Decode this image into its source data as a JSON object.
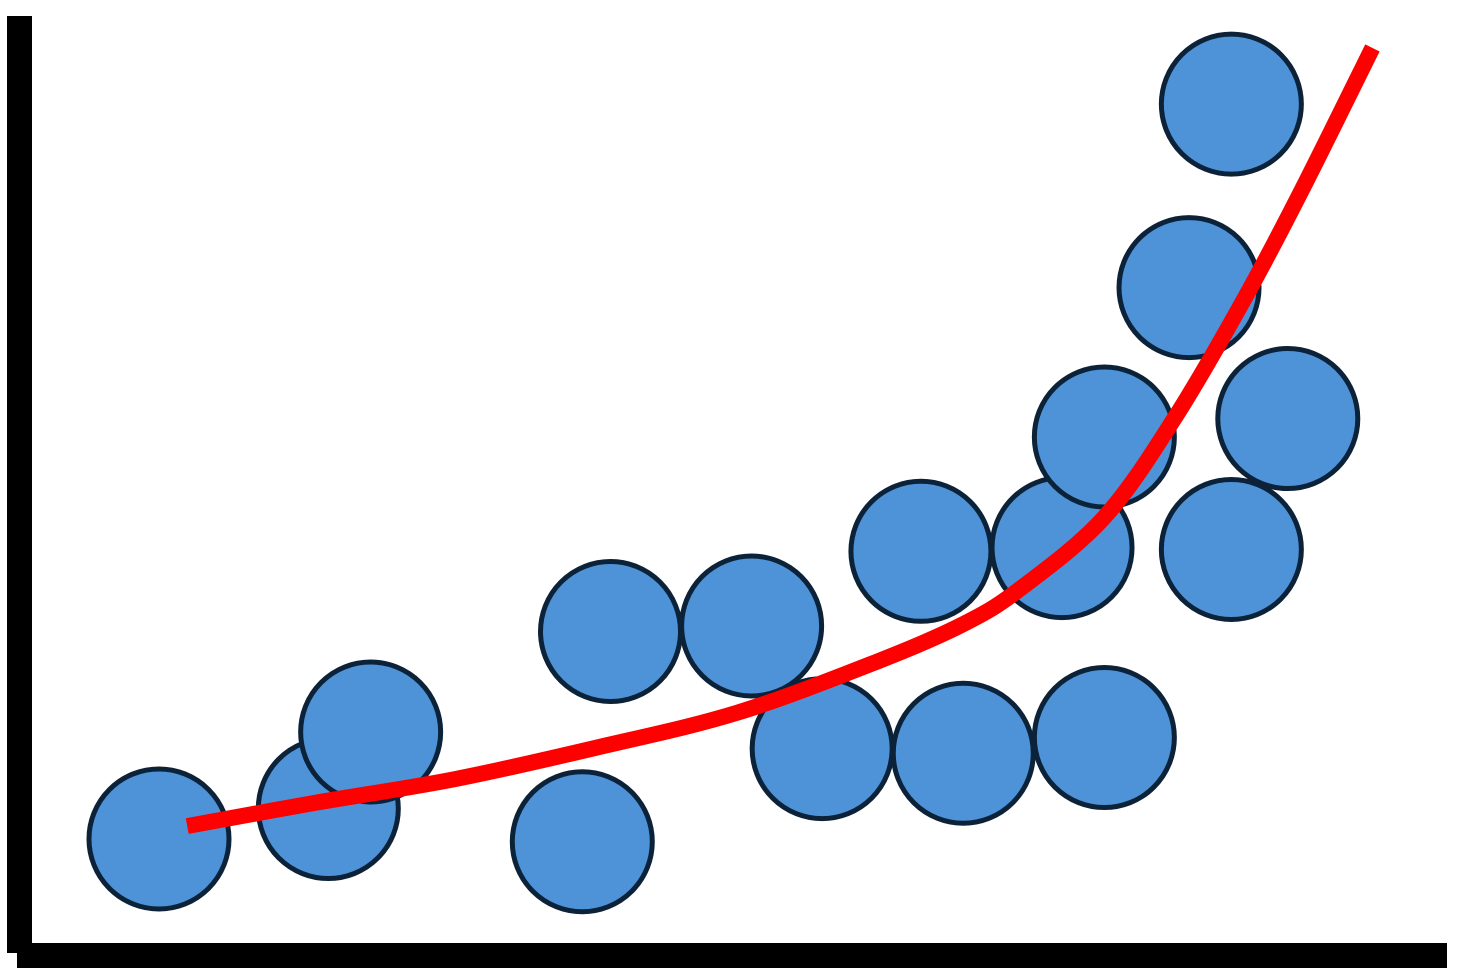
{
  "chart_data": {
    "type": "scatter",
    "title": "",
    "xlabel": "",
    "ylabel": "",
    "grid": false,
    "legend": "none",
    "xlim": [
      0,
      100
    ],
    "ylim": [
      0,
      100
    ],
    "x_ticks": [],
    "y_ticks": [],
    "series": [
      {
        "kind": "points",
        "color": "#4E93D8",
        "edge_color": "#0B2239",
        "points": [
          {
            "x": 9,
            "y": 11.5
          },
          {
            "x": 21,
            "y": 14.8
          },
          {
            "x": 24,
            "y": 23.1
          },
          {
            "x": 39,
            "y": 11.2
          },
          {
            "x": 41,
            "y": 34.0
          },
          {
            "x": 51,
            "y": 34.6
          },
          {
            "x": 56,
            "y": 21.3
          },
          {
            "x": 63,
            "y": 42.7
          },
          {
            "x": 66,
            "y": 20.8
          },
          {
            "x": 73,
            "y": 43.1
          },
          {
            "x": 76,
            "y": 55.1
          },
          {
            "x": 76,
            "y": 22.5
          },
          {
            "x": 82,
            "y": 71.3
          },
          {
            "x": 85,
            "y": 42.9
          },
          {
            "x": 85,
            "y": 91.2
          },
          {
            "x": 89,
            "y": 57.1
          }
        ]
      },
      {
        "kind": "trend",
        "shape": "exponential",
        "color": "#FF0000",
        "x": [
          11,
          20,
          30,
          40,
          50,
          60,
          66,
          70,
          76,
          81,
          86,
          90,
          95
        ],
        "y": [
          12.9,
          15.4,
          18.0,
          21.4,
          25.2,
          30.8,
          34.8,
          38.6,
          46.4,
          57.2,
          70.3,
          81.9,
          97.3
        ]
      }
    ]
  }
}
